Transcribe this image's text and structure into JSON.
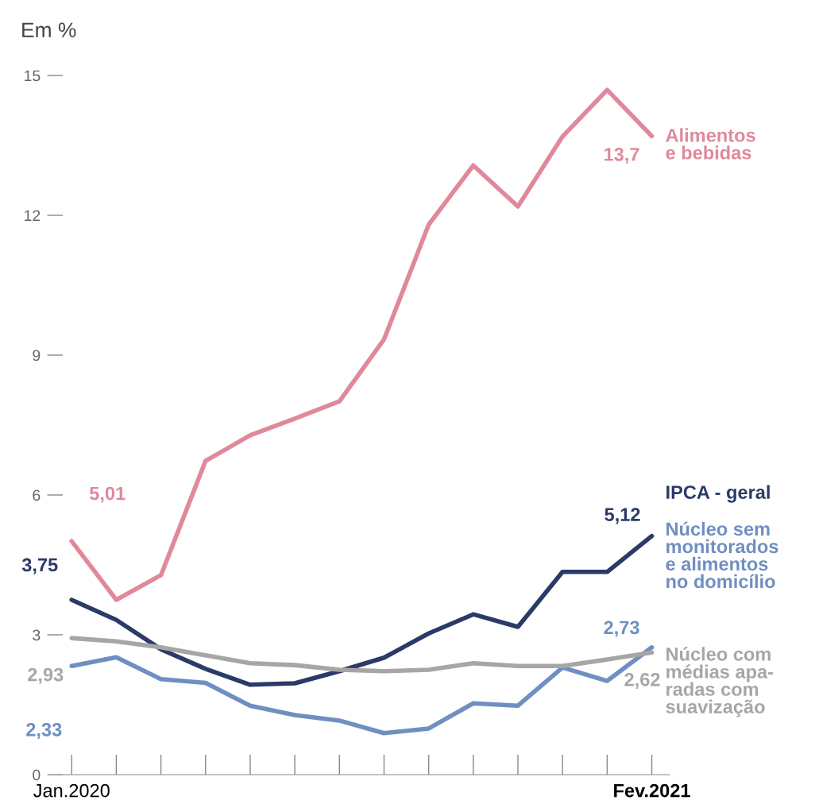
{
  "chart_data": {
    "type": "line",
    "title": "Em %",
    "categories": [
      "Jan.2020",
      null,
      null,
      null,
      null,
      null,
      null,
      null,
      null,
      null,
      null,
      null,
      null,
      "Fev.2021"
    ],
    "ylim": [
      0,
      15
    ],
    "yticks": [
      0,
      3,
      6,
      9,
      12,
      15
    ],
    "grid": false,
    "legend": false,
    "marker": "none",
    "line_style": "solid",
    "series": [
      {
        "name": "Alimentos\ne bebidas",
        "color": "#e0899a",
        "values": [
          5.01,
          3.75,
          4.28,
          6.73,
          7.28,
          7.64,
          8.01,
          9.34,
          11.8,
          13.07,
          12.19,
          13.69,
          14.69,
          13.7
        ],
        "value_labels": [
          "5,01",
          null,
          null,
          null,
          null,
          null,
          null,
          null,
          null,
          null,
          null,
          null,
          null,
          "13,7"
        ]
      },
      {
        "name": "IPCA - geral",
        "color": "#2b3a67",
        "values": [
          3.75,
          3.32,
          2.69,
          2.27,
          1.93,
          1.96,
          2.22,
          2.51,
          3.03,
          3.44,
          3.17,
          4.35,
          4.35,
          5.12
        ],
        "value_labels": [
          "3,75",
          null,
          null,
          null,
          null,
          null,
          null,
          null,
          null,
          null,
          null,
          null,
          null,
          "5,12"
        ]
      },
      {
        "name": "Núcleo sem\nmonitorados\ne alimentos\nno domicílio",
        "color": "#6f8fc1",
        "values": [
          2.33,
          2.52,
          2.05,
          1.97,
          1.48,
          1.28,
          1.16,
          0.89,
          0.99,
          1.53,
          1.48,
          2.3,
          2.01,
          2.73
        ],
        "value_labels": [
          "2,33",
          null,
          null,
          null,
          null,
          null,
          null,
          null,
          null,
          null,
          null,
          null,
          null,
          "2,73"
        ]
      },
      {
        "name": "Núcleo com\nmédias apa-\nradas com\nsuavização",
        "color": "#a6a6a6",
        "values": [
          2.93,
          2.86,
          2.73,
          2.56,
          2.39,
          2.35,
          2.25,
          2.22,
          2.25,
          2.39,
          2.33,
          2.33,
          2.47,
          2.62
        ],
        "value_labels": [
          "2,93",
          null,
          null,
          null,
          null,
          null,
          null,
          null,
          null,
          null,
          null,
          null,
          null,
          "2,62"
        ]
      }
    ]
  }
}
